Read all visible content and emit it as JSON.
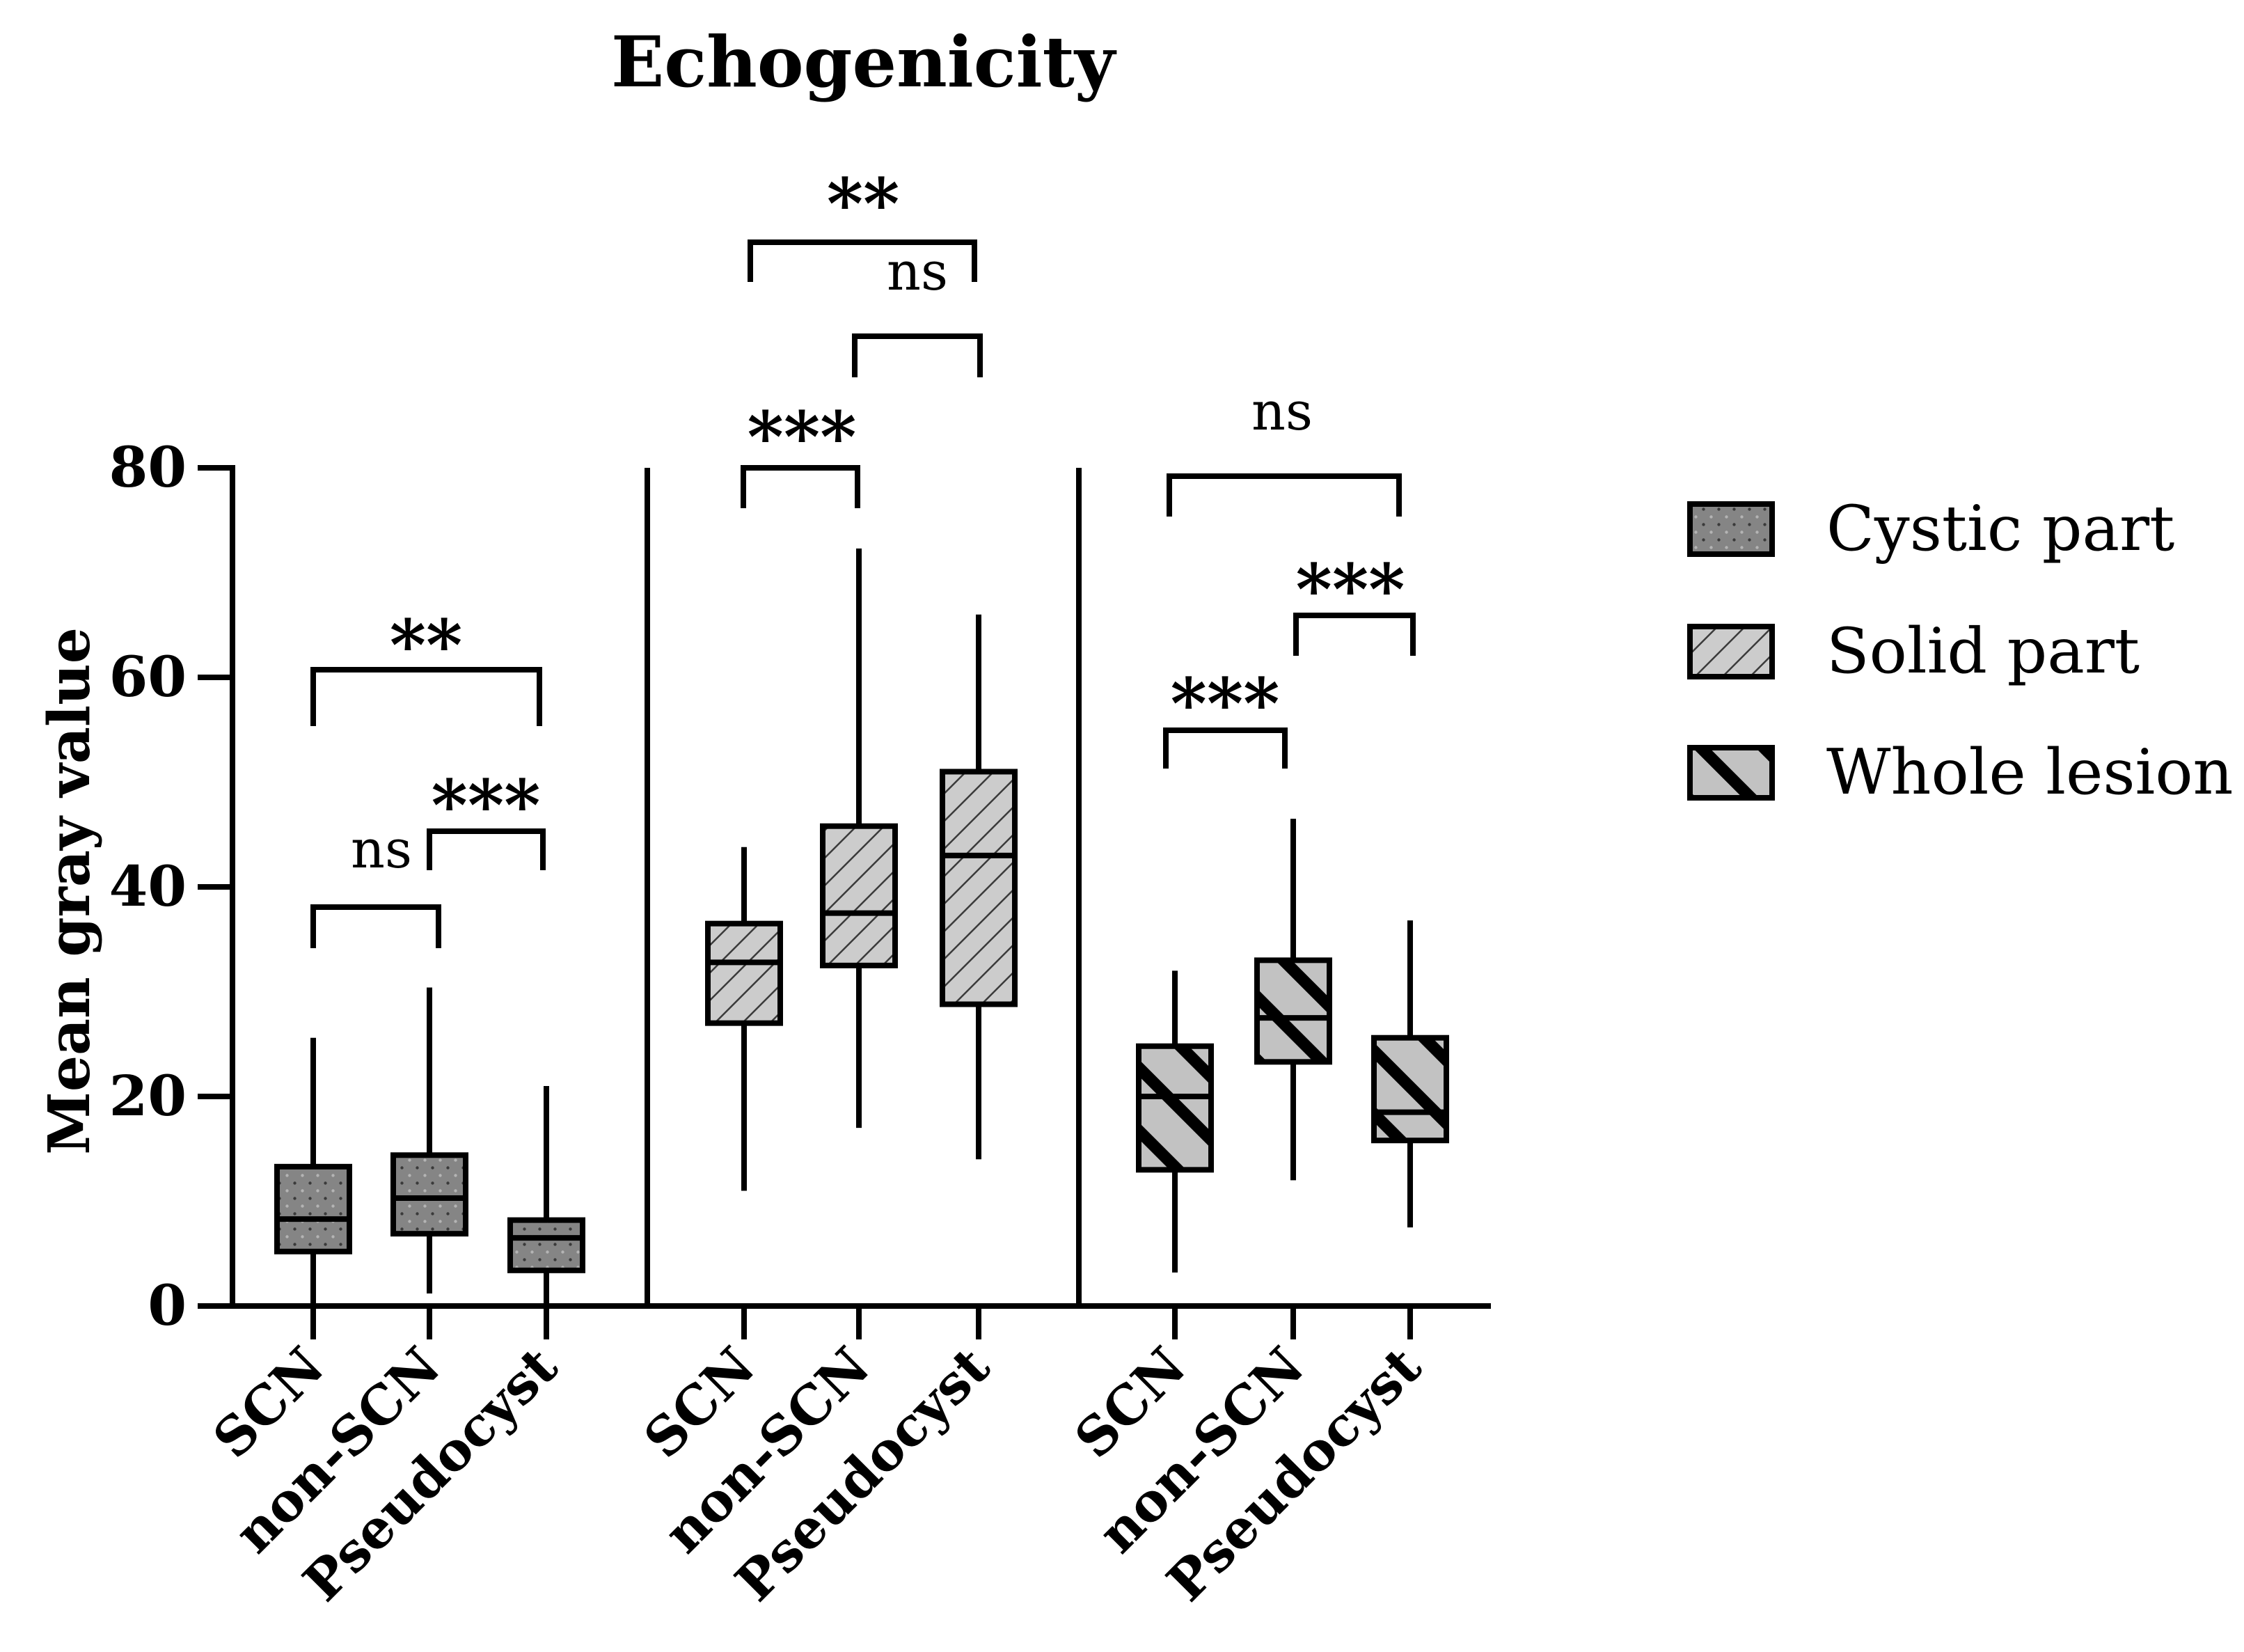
{
  "chart_data": {
    "type": "box",
    "title": "Echogenicity",
    "ylabel": "Mean gray value",
    "xlabel": "",
    "ylim": [
      0,
      80
    ],
    "yticks": [
      0,
      20,
      40,
      60,
      80
    ],
    "ytick_labels": [
      "0",
      "20",
      "40",
      "60",
      "80"
    ],
    "legend_position": "right",
    "panels": [
      {
        "series": "Cystic part",
        "pattern": "dots",
        "fill": "#858585",
        "groups": [
          {
            "category": "SCN",
            "min": 0,
            "q1": 5.2,
            "median": 8.3,
            "q3": 13.3,
            "max": 25.6
          },
          {
            "category": "non-SCN",
            "min": 1.2,
            "q1": 6.9,
            "median": 10.3,
            "q3": 14.4,
            "max": 30.4
          },
          {
            "category": "Pseudocyst",
            "min": 0.2,
            "q1": 3.4,
            "median": 6.5,
            "q3": 8.2,
            "max": 21.0
          }
        ],
        "comparisons": [
          {
            "from": "SCN",
            "to": "Pseudocyst",
            "label": "**"
          },
          {
            "from": "non-SCN",
            "to": "Pseudocyst",
            "label": "***"
          },
          {
            "from": "SCN",
            "to": "non-SCN",
            "label": "ns"
          }
        ]
      },
      {
        "series": "Solid part",
        "pattern": "back-diagonal",
        "fill": "#cccccc",
        "groups": [
          {
            "category": "SCN",
            "min": 11.0,
            "q1": 27.0,
            "median": 32.8,
            "q3": 36.5,
            "max": 43.8
          },
          {
            "category": "non-SCN",
            "min": 17.0,
            "q1": 32.5,
            "median": 37.5,
            "q3": 45.8,
            "max": 72.3
          },
          {
            "category": "Pseudocyst",
            "min": 14.0,
            "q1": 28.8,
            "median": 43.0,
            "q3": 51.0,
            "max": 66.0
          }
        ],
        "comparisons": [
          {
            "from": "SCN",
            "to": "Pseudocyst",
            "label": "**"
          },
          {
            "from": "non-SCN",
            "to": "Pseudocyst",
            "label": "ns"
          },
          {
            "from": "SCN",
            "to": "non-SCN",
            "label": "***"
          }
        ]
      },
      {
        "series": "Whole lesion",
        "pattern": "forward-diagonal",
        "fill": "#c2c2c2",
        "groups": [
          {
            "category": "SCN",
            "min": 3.2,
            "q1": 13.0,
            "median": 20.0,
            "q3": 24.8,
            "max": 32.0
          },
          {
            "category": "non-SCN",
            "min": 12.0,
            "q1": 23.3,
            "median": 27.5,
            "q3": 33.0,
            "max": 46.5
          },
          {
            "category": "Pseudocyst",
            "min": 7.5,
            "q1": 15.8,
            "median": 18.5,
            "q3": 25.6,
            "max": 36.8
          }
        ],
        "comparisons": [
          {
            "from": "SCN",
            "to": "Pseudocyst",
            "label": "ns"
          },
          {
            "from": "non-SCN",
            "to": "Pseudocyst",
            "label": "***"
          },
          {
            "from": "SCN",
            "to": "non-SCN",
            "label": "***"
          }
        ]
      }
    ],
    "legend": [
      {
        "label": "Cystic part",
        "pattern": "dots"
      },
      {
        "label": "Solid part",
        "pattern": "back-diagonal"
      },
      {
        "label": "Whole lesion",
        "pattern": "forward-diagonal"
      }
    ]
  }
}
